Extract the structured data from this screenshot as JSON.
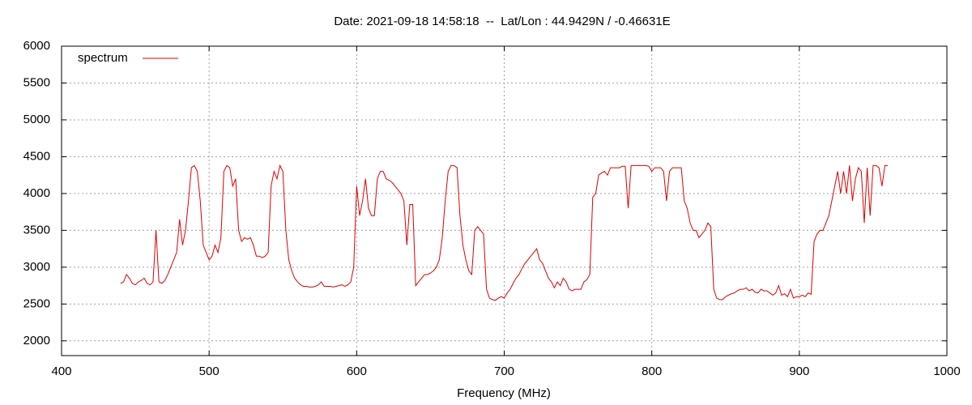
{
  "chart_data": {
    "type": "line",
    "title": "Date: 2021-09-18 14:58:18  --  Lat/Lon : 44.9429N / -0.46631E",
    "x_label": "Frequency (MHz)",
    "xlim": [
      400,
      1000
    ],
    "xticks": [
      400,
      500,
      600,
      700,
      800,
      900,
      1000
    ],
    "ylim": [
      1800,
      6000
    ],
    "yticks": [
      2000,
      2500,
      3000,
      3500,
      4000,
      4500,
      5000,
      5500,
      6000
    ],
    "grid": true,
    "legend": "top-left",
    "x": [
      440,
      442,
      444,
      446,
      448,
      450,
      452,
      454,
      456,
      458,
      460,
      462,
      464,
      466,
      468,
      470,
      472,
      474,
      476,
      478,
      480,
      482,
      484,
      486,
      488,
      490,
      492,
      494,
      496,
      498,
      500,
      502,
      504,
      506,
      508,
      510,
      512,
      514,
      516,
      518,
      520,
      522,
      524,
      526,
      528,
      530,
      532,
      534,
      536,
      538,
      540,
      542,
      544,
      546,
      548,
      550,
      552,
      554,
      556,
      558,
      560,
      562,
      564,
      566,
      568,
      570,
      572,
      574,
      576,
      578,
      580,
      582,
      584,
      586,
      588,
      590,
      592,
      594,
      596,
      598,
      600,
      602,
      604,
      606,
      608,
      610,
      612,
      614,
      616,
      618,
      620,
      622,
      624,
      626,
      628,
      630,
      632,
      634,
      636,
      638,
      640,
      642,
      644,
      646,
      648,
      650,
      652,
      654,
      656,
      658,
      660,
      662,
      664,
      666,
      668,
      670,
      672,
      674,
      676,
      678,
      680,
      682,
      684,
      686,
      688,
      690,
      692,
      694,
      696,
      698,
      700,
      702,
      704,
      706,
      708,
      710,
      712,
      714,
      716,
      718,
      720,
      722,
      724,
      726,
      728,
      730,
      732,
      734,
      736,
      738,
      740,
      742,
      744,
      746,
      748,
      750,
      752,
      754,
      756,
      758,
      760,
      762,
      764,
      766,
      768,
      770,
      772,
      774,
      776,
      778,
      780,
      782,
      784,
      786,
      788,
      790,
      792,
      794,
      796,
      798,
      800,
      802,
      804,
      806,
      808,
      810,
      812,
      814,
      816,
      818,
      820,
      822,
      824,
      826,
      828,
      830,
      832,
      834,
      836,
      838,
      840,
      842,
      844,
      846,
      848,
      850,
      852,
      854,
      856,
      858,
      860,
      862,
      864,
      866,
      868,
      870,
      872,
      874,
      876,
      878,
      880,
      882,
      884,
      886,
      888,
      890,
      892,
      894,
      896,
      898,
      900,
      902,
      904,
      906,
      908,
      910,
      912,
      914,
      916,
      918,
      920,
      922,
      924,
      926,
      928,
      930,
      932,
      934,
      936,
      938,
      940,
      942,
      944,
      946,
      948,
      950,
      952,
      954,
      956,
      958,
      960
    ],
    "series": [
      {
        "name": "spectrum",
        "color": "#e00000",
        "values": [
          2780,
          2800,
          2900,
          2850,
          2780,
          2760,
          2800,
          2820,
          2850,
          2780,
          2760,
          2800,
          3500,
          2800,
          2780,
          2820,
          2900,
          3000,
          3100,
          3200,
          3650,
          3300,
          3500,
          3900,
          4350,
          4380,
          4300,
          3900,
          3300,
          3200,
          3100,
          3150,
          3300,
          3200,
          3400,
          4300,
          4380,
          4350,
          4100,
          4200,
          3500,
          3350,
          3400,
          3380,
          3400,
          3300,
          3150,
          3150,
          3130,
          3150,
          3200,
          4100,
          4300,
          4200,
          4380,
          4300,
          3500,
          3100,
          2950,
          2850,
          2800,
          2760,
          2740,
          2740,
          2730,
          2730,
          2740,
          2760,
          2800,
          2740,
          2740,
          2740,
          2730,
          2740,
          2750,
          2760,
          2740,
          2760,
          2800,
          3000,
          4100,
          3700,
          3900,
          4200,
          3800,
          3700,
          3700,
          4200,
          4300,
          4300,
          4200,
          4180,
          4150,
          4100,
          4050,
          4000,
          3900,
          3300,
          3850,
          3850,
          2750,
          2800,
          2850,
          2900,
          2900,
          2920,
          2950,
          3000,
          3100,
          3400,
          3900,
          4300,
          4380,
          4380,
          4350,
          3700,
          3300,
          3100,
          2950,
          2900,
          3500,
          3550,
          3500,
          3450,
          2700,
          2580,
          2560,
          2550,
          2580,
          2600,
          2580,
          2650,
          2700,
          2780,
          2850,
          2900,
          2980,
          3050,
          3100,
          3150,
          3200,
          3250,
          3100,
          3050,
          2950,
          2850,
          2800,
          2720,
          2800,
          2750,
          2850,
          2800,
          2700,
          2680,
          2700,
          2700,
          2700,
          2800,
          2830,
          2900,
          3950,
          4000,
          4250,
          4280,
          4300,
          4250,
          4350,
          4350,
          4350,
          4350,
          4370,
          4370,
          3800,
          4380,
          4380,
          4380,
          4380,
          4380,
          4380,
          4370,
          4300,
          4350,
          4350,
          4350,
          4300,
          3900,
          4300,
          4350,
          4350,
          4350,
          4350,
          3900,
          3800,
          3600,
          3500,
          3500,
          3400,
          3450,
          3500,
          3600,
          3550,
          2700,
          2580,
          2560,
          2560,
          2600,
          2620,
          2640,
          2650,
          2680,
          2700,
          2700,
          2720,
          2680,
          2700,
          2660,
          2650,
          2700,
          2680,
          2680,
          2650,
          2620,
          2650,
          2750,
          2620,
          2640,
          2600,
          2700,
          2580,
          2600,
          2600,
          2620,
          2600,
          2650,
          2630,
          3350,
          3450,
          3500,
          3500,
          3600,
          3700,
          3900,
          4100,
          4300,
          4000,
          4300,
          4000,
          4380,
          3900,
          4200,
          4350,
          4300,
          3600,
          4350,
          3700,
          4380,
          4380,
          4350,
          4100,
          4380,
          4380
        ]
      }
    ]
  }
}
